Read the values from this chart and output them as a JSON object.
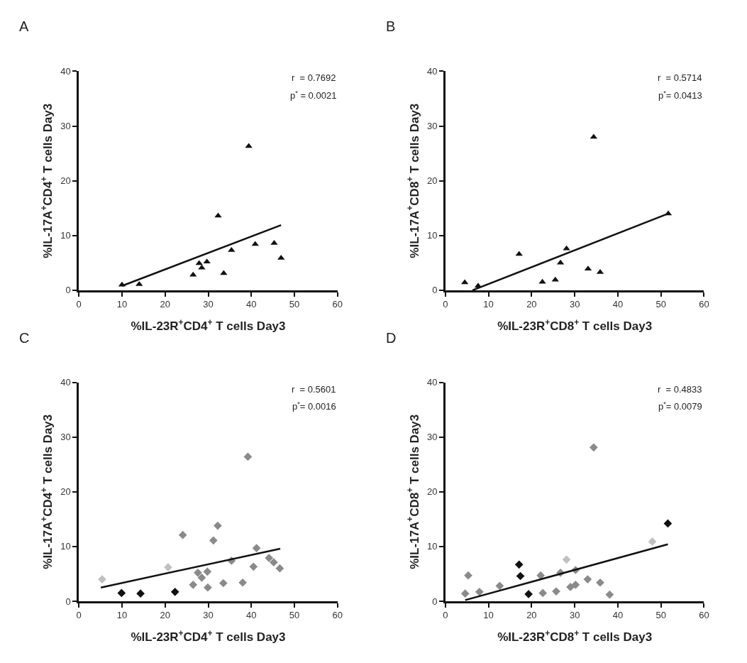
{
  "chart_data": [
    {
      "type": "scatter",
      "title": "A",
      "xlabel": "%IL-23R$^{+}$CD4$^{+}$ T cells Day3",
      "ylabel": "%IL-17A$^{+}$CD4$^{+}$ T cells Day3",
      "xlim": [
        0,
        60
      ],
      "ylim": [
        0,
        40
      ],
      "xticks": [
        0,
        10,
        20,
        30,
        40,
        50,
        60
      ],
      "yticks": [
        0,
        10,
        20,
        30,
        40
      ],
      "annotations": [
        "r  = 0.7692",
        "p$^{*}$ = 0.0021"
      ],
      "series": [
        {
          "marker": "triangle",
          "color": "#111111",
          "x": [
            10,
            14,
            26.5,
            27.9,
            28.5,
            29.7,
            32.3,
            33.6,
            35.4,
            39.4,
            40.9,
            45.3,
            46.9
          ],
          "values": [
            1.0,
            1.1,
            2.8,
            4.9,
            4.1,
            5.2,
            13.6,
            3.1,
            7.3,
            26.3,
            8.4,
            8.6,
            5.9
          ]
        },
        {
          "type": "line",
          "color": "#111111",
          "x": [
            10,
            46.9
          ],
          "values": [
            0.8,
            11.9
          ]
        }
      ]
    },
    {
      "type": "scatter",
      "title": "B",
      "xlabel": "%IL-23R$^{+}$CD8$^{+}$ T cells Day3",
      "ylabel": "%IL-17A$^{+}$CD8$^{+}$ T cells Day3",
      "xlim": [
        0,
        60
      ],
      "ylim": [
        0,
        40
      ],
      "xticks": [
        0,
        10,
        20,
        30,
        40,
        50,
        60
      ],
      "yticks": [
        0,
        10,
        20,
        30,
        40
      ],
      "annotations": [
        "r  = 0.5714",
        "p$^{*}$= 0.0413"
      ],
      "series": [
        {
          "marker": "triangle",
          "color": "#111111",
          "x": [
            4.5,
            7.6,
            17.1,
            22.5,
            25.5,
            26.7,
            28.1,
            33.1,
            34.4,
            35.9,
            51.7
          ],
          "values": [
            1.4,
            0.8,
            6.6,
            1.5,
            1.9,
            5.0,
            7.6,
            3.9,
            28.0,
            3.3,
            14.0
          ]
        },
        {
          "type": "line",
          "color": "#111111",
          "x": [
            6.3,
            51.7
          ],
          "values": [
            0,
            14.0
          ]
        }
      ]
    },
    {
      "type": "scatter",
      "title": "C",
      "xlabel": "%IL-23R$^{+}$CD4$^{+}$ T cells Day3",
      "ylabel": "%IL-17A$^{+}$CD4$^{+}$ T cells Day3",
      "xlim": [
        0,
        60
      ],
      "ylim": [
        0,
        40
      ],
      "xticks": [
        0,
        10,
        20,
        30,
        40,
        50,
        60
      ],
      "yticks": [
        0,
        10,
        20,
        30,
        40
      ],
      "annotations": [
        "r  = 0.5601",
        "p$^{*}$= 0.0016"
      ],
      "series": [
        {
          "marker": "diamond",
          "x": [
            5.4,
            9.9,
            14.3,
            20.7,
            22.3,
            24.1,
            26.5,
            27.6,
            28.5,
            29.8,
            29.9,
            31.2,
            32.2,
            33.5,
            35.4,
            38.0,
            39.2,
            40.5,
            41.2,
            44.1,
            45.2,
            46.6
          ],
          "values": [
            4.0,
            1.5,
            1.4,
            6.2,
            1.7,
            12.1,
            3.0,
            5.2,
            4.3,
            5.4,
            2.5,
            11.1,
            13.8,
            3.3,
            7.4,
            3.4,
            26.4,
            6.3,
            9.7,
            7.9,
            7.1,
            6.0
          ],
          "colors": [
            "#c0c0c0",
            "#111111",
            "#111111",
            "#c0c0c0",
            "#111111",
            "#8a8a8a",
            "#8a8a8a",
            "#8a8a8a",
            "#8a8a8a",
            "#8a8a8a",
            "#8a8a8a",
            "#8a8a8a",
            "#8a8a8a",
            "#8a8a8a",
            "#8a8a8a",
            "#8a8a8a",
            "#8a8a8a",
            "#8a8a8a",
            "#8a8a8a",
            "#8a8a8a",
            "#8a8a8a",
            "#8a8a8a"
          ]
        },
        {
          "type": "line",
          "color": "#111111",
          "x": [
            5.1,
            46.7
          ],
          "values": [
            2.5,
            9.6
          ]
        }
      ]
    },
    {
      "type": "scatter",
      "title": "D",
      "xlabel": "%IL-23R$^{+}$CD8$^{+}$ T cells Day3",
      "ylabel": "%IL-17A$^{+}$CD8$^{+}$ T cells Day3",
      "xlim": [
        0,
        60
      ],
      "ylim": [
        0,
        40
      ],
      "xticks": [
        0,
        10,
        20,
        30,
        40,
        50,
        60
      ],
      "yticks": [
        0,
        10,
        20,
        30,
        40
      ],
      "annotations": [
        "r  = 0.4833",
        "p$^{*}$= 0.0079"
      ],
      "series": [
        {
          "marker": "diamond",
          "x": [
            4.6,
            5.3,
            7.9,
            12.6,
            17.1,
            17.4,
            19.3,
            22.1,
            22.6,
            25.7,
            26.7,
            28.1,
            29.0,
            30.2,
            30.2,
            33.0,
            34.4,
            35.9,
            38.1,
            48.0,
            51.6
          ],
          "values": [
            1.4,
            4.7,
            1.7,
            2.8,
            6.7,
            4.6,
            1.3,
            4.7,
            1.5,
            1.8,
            5.2,
            7.6,
            2.6,
            3.0,
            5.7,
            4.0,
            28.1,
            3.4,
            1.2,
            10.9,
            14.2
          ],
          "colors": [
            "#8a8a8a",
            "#8a8a8a",
            "#8a8a8a",
            "#8a8a8a",
            "#111111",
            "#111111",
            "#111111",
            "#8a8a8a",
            "#8a8a8a",
            "#8a8a8a",
            "#8a8a8a",
            "#c0c0c0",
            "#8a8a8a",
            "#8a8a8a",
            "#8a8a8a",
            "#8a8a8a",
            "#8a8a8a",
            "#8a8a8a",
            "#8a8a8a",
            "#c0c0c0",
            "#111111"
          ]
        },
        {
          "type": "line",
          "color": "#111111",
          "x": [
            4.6,
            51.6
          ],
          "values": [
            0.2,
            10.4
          ]
        }
      ]
    }
  ]
}
